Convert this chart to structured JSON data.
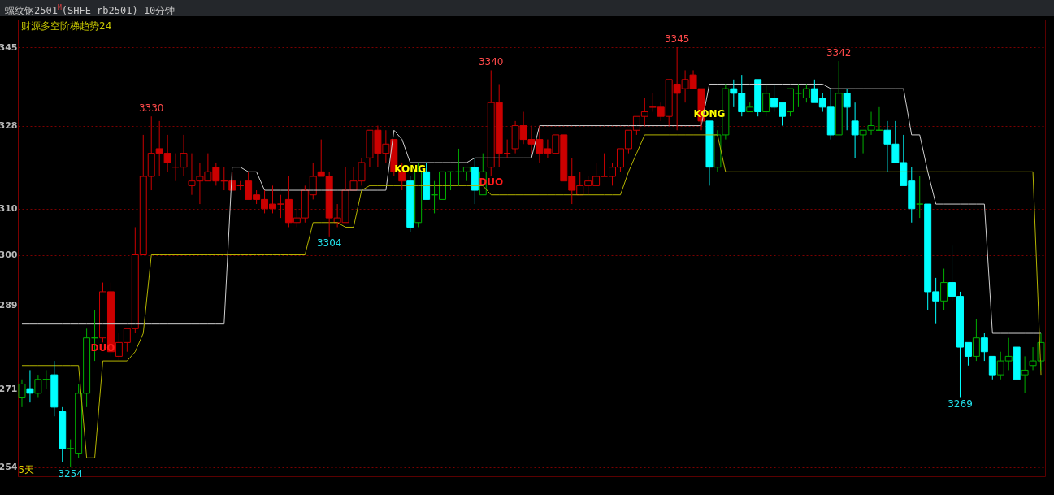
{
  "chart_data": {
    "type": "candlestick",
    "title": "螺纹钢2501$^{M}$(SHFE rb2501)  10分钟",
    "subtitle": "财源多空阶梯趋势24",
    "xlabel": "5天",
    "categories": [
      null,
      null,
      null,
      null,
      null,
      null,
      null,
      null,
      null,
      null,
      null,
      null,
      null,
      null,
      null,
      null,
      null,
      null,
      null,
      null,
      null,
      null,
      null,
      null,
      null,
      null,
      null,
      null,
      null,
      null,
      null,
      null,
      null,
      null,
      null,
      null,
      null,
      null,
      null,
      null,
      null,
      null,
      null,
      null,
      null,
      null,
      null,
      null,
      null,
      null,
      null,
      null,
      null,
      null,
      null,
      null,
      null,
      null,
      null,
      null,
      null,
      null,
      null,
      null,
      null,
      null,
      null,
      null,
      null,
      null,
      null,
      null,
      null,
      null,
      null,
      null,
      null,
      null,
      null,
      null,
      null,
      null,
      null,
      null,
      null,
      null,
      null,
      null,
      null,
      null,
      null,
      null,
      null,
      null,
      null,
      null,
      null,
      null,
      null,
      null,
      null,
      null,
      null,
      null,
      null,
      null,
      null,
      null,
      null,
      null,
      null,
      null,
      null,
      null,
      null,
      null,
      null,
      null,
      null,
      null,
      null,
      null,
      null,
      null,
      null,
      null,
      null
    ],
    "ohlc": [
      [
        269,
        273,
        267,
        272
      ],
      [
        271,
        275,
        268,
        270
      ],
      [
        270,
        274,
        269,
        273
      ],
      [
        273,
        275,
        271,
        273
      ],
      [
        274,
        277,
        265,
        267
      ],
      [
        266,
        267,
        255,
        258
      ],
      [
        258,
        260,
        254,
        258
      ],
      [
        257,
        272,
        256,
        270
      ],
      [
        270,
        284,
        267,
        282
      ],
      [
        282,
        288,
        277,
        282
      ],
      [
        282,
        294,
        281,
        292
      ],
      [
        292,
        294,
        278,
        279
      ],
      [
        278,
        283,
        277,
        281
      ],
      [
        281,
        284,
        279,
        284
      ],
      [
        284,
        306,
        283,
        300
      ],
      [
        300,
        326,
        300,
        317
      ],
      [
        317,
        330,
        314,
        322
      ],
      [
        323,
        329,
        317,
        322
      ],
      [
        322,
        326,
        318,
        320
      ],
      [
        319,
        322,
        316,
        319
      ],
      [
        319,
        326,
        317,
        322
      ],
      [
        315,
        322,
        313,
        316
      ],
      [
        316,
        320,
        311,
        317
      ],
      [
        316,
        322,
        316,
        318
      ],
      [
        319,
        320,
        315,
        316
      ],
      [
        316,
        319,
        314,
        316
      ],
      [
        316,
        318,
        314,
        314
      ],
      [
        315,
        316,
        314,
        315
      ],
      [
        316,
        318,
        312,
        312
      ],
      [
        313,
        314,
        311,
        312
      ],
      [
        312,
        314,
        309,
        310
      ],
      [
        311,
        315,
        309,
        310
      ],
      [
        311,
        313,
        308,
        311
      ],
      [
        312,
        317,
        306,
        307
      ],
      [
        307,
        310,
        306,
        308
      ],
      [
        308,
        315,
        307,
        314
      ],
      [
        313,
        320,
        312,
        317
      ],
      [
        318,
        325,
        317,
        317
      ],
      [
        317,
        318,
        304,
        308
      ],
      [
        307,
        311,
        306,
        308
      ],
      [
        307,
        319,
        307,
        314
      ],
      [
        314,
        319,
        314,
        316
      ],
      [
        316,
        321,
        315,
        320
      ],
      [
        321,
        327,
        319,
        327
      ],
      [
        327,
        328,
        319,
        322
      ],
      [
        322,
        327,
        320,
        324
      ],
      [
        325,
        325,
        317,
        318
      ],
      [
        318,
        320,
        314,
        316
      ],
      [
        316,
        317,
        305,
        306
      ],
      [
        307,
        320,
        306,
        318
      ],
      [
        318,
        320,
        312,
        312
      ],
      [
        313,
        316,
        309,
        313
      ],
      [
        312,
        318,
        312,
        318
      ],
      [
        318,
        318,
        314,
        318
      ],
      [
        318,
        323,
        315,
        318
      ],
      [
        318,
        319,
        316,
        319
      ],
      [
        319,
        321,
        311,
        314
      ],
      [
        313,
        322,
        313,
        318
      ],
      [
        319,
        340,
        317,
        333
      ],
      [
        333,
        337,
        319,
        322
      ],
      [
        322,
        325,
        321,
        322
      ],
      [
        323,
        329,
        322,
        328
      ],
      [
        328,
        331,
        324,
        325
      ],
      [
        325,
        328,
        322,
        324
      ],
      [
        325,
        328,
        320,
        322
      ],
      [
        323,
        325,
        321,
        322
      ],
      [
        322,
        326,
        322,
        326
      ],
      [
        326,
        326,
        316,
        316
      ],
      [
        317,
        321,
        311,
        314
      ],
      [
        313,
        318,
        313,
        315
      ],
      [
        315,
        317,
        313,
        316
      ],
      [
        315,
        320,
        315,
        317
      ],
      [
        317,
        322,
        317,
        317
      ],
      [
        317,
        320,
        315,
        319
      ],
      [
        319,
        323,
        318,
        323
      ],
      [
        323,
        327,
        322,
        327
      ],
      [
        327,
        330,
        326,
        330
      ],
      [
        330,
        334,
        328,
        331
      ],
      [
        332,
        335,
        331,
        332
      ],
      [
        332,
        333,
        329,
        330
      ],
      [
        330,
        338,
        328,
        338
      ],
      [
        337,
        345,
        327,
        335
      ],
      [
        336,
        340,
        333,
        338
      ],
      [
        339,
        340,
        336,
        336
      ],
      [
        336,
        336,
        327,
        329
      ],
      [
        329,
        329,
        315,
        319
      ],
      [
        319,
        327,
        318,
        326
      ],
      [
        326,
        337,
        325,
        336
      ],
      [
        336,
        338,
        332,
        335
      ],
      [
        335,
        339,
        330,
        331
      ],
      [
        331,
        333,
        331,
        332
      ],
      [
        338,
        338,
        330,
        331
      ],
      [
        331,
        337,
        330,
        335
      ],
      [
        334,
        337,
        331,
        332
      ],
      [
        333,
        333,
        328,
        330
      ],
      [
        331,
        336,
        330,
        336
      ],
      [
        335,
        337,
        332,
        335
      ],
      [
        334,
        337,
        333,
        336
      ],
      [
        336,
        338,
        333,
        333
      ],
      [
        334,
        335,
        331,
        332
      ],
      [
        332,
        336,
        325,
        326
      ],
      [
        326,
        342,
        326,
        335
      ],
      [
        335,
        336,
        327,
        332
      ],
      [
        329,
        333,
        321,
        326
      ],
      [
        326,
        327,
        322,
        327
      ],
      [
        327,
        331,
        326,
        328
      ],
      [
        327,
        332,
        327,
        327
      ],
      [
        327,
        329,
        318,
        324
      ],
      [
        324,
        329,
        320,
        320
      ],
      [
        320,
        326,
        315,
        315
      ],
      [
        316,
        319,
        307,
        310
      ],
      [
        311,
        317,
        308,
        311
      ],
      [
        311,
        311,
        288,
        292
      ],
      [
        292,
        295,
        285,
        290
      ],
      [
        290,
        297,
        288,
        294
      ],
      [
        294,
        302,
        290,
        291
      ],
      [
        291,
        292,
        269,
        280
      ],
      [
        281,
        281,
        276,
        278
      ],
      [
        278,
        286,
        277,
        282
      ],
      [
        282,
        283,
        277,
        279
      ],
      [
        278,
        278,
        273,
        274
      ],
      [
        274,
        279,
        273,
        277
      ],
      [
        277,
        282,
        275,
        278
      ],
      [
        280,
        280,
        273,
        273
      ],
      [
        274,
        278,
        270,
        275
      ],
      [
        276,
        280,
        275,
        277
      ],
      [
        277,
        283,
        275,
        281
      ]
    ],
    "colors": [
      "#00b000",
      "#00ffff",
      "#00b000",
      "#00b000",
      "#00ffff",
      "#00ffff",
      "#00b000",
      "#00b000",
      "#00b000",
      "#00b000",
      "#cc0000",
      "#cc0000",
      "#cc0000",
      "#cc0000",
      "#cc0000",
      "#cc0000",
      "#cc0000",
      "#cc0000",
      "#cc0000",
      "#cc0000",
      "#cc0000",
      "#cc0000",
      "#cc0000",
      "#cc0000",
      "#cc0000",
      "#cc0000",
      "#cc0000",
      "#cc0000",
      "#cc0000",
      "#cc0000",
      "#cc0000",
      "#cc0000",
      "#cc0000",
      "#cc0000",
      "#cc0000",
      "#cc0000",
      "#cc0000",
      "#cc0000",
      "#cc0000",
      "#cc0000",
      "#cc0000",
      "#cc0000",
      "#cc0000",
      "#cc0000",
      "#cc0000",
      "#cc0000",
      "#cc0000",
      "#cc0000",
      "#00ffff",
      "#00b000",
      "#00ffff",
      "#00b000",
      "#00b000",
      "#00b000",
      "#00b000",
      "#00b000",
      "#00ffff",
      "#00b000",
      "#cc0000",
      "#cc0000",
      "#cc0000",
      "#cc0000",
      "#cc0000",
      "#cc0000",
      "#cc0000",
      "#cc0000",
      "#cc0000",
      "#cc0000",
      "#cc0000",
      "#cc0000",
      "#cc0000",
      "#cc0000",
      "#cc0000",
      "#cc0000",
      "#cc0000",
      "#cc0000",
      "#cc0000",
      "#cc0000",
      "#cc0000",
      "#cc0000",
      "#cc0000",
      "#cc0000",
      "#cc0000",
      "#cc0000",
      "#cc0000",
      "#00ffff",
      "#00b000",
      "#00b000",
      "#00ffff",
      "#00ffff",
      "#00b000",
      "#00ffff",
      "#00b000",
      "#00ffff",
      "#00ffff",
      "#00b000",
      "#00b000",
      "#00b000",
      "#00ffff",
      "#00ffff",
      "#00ffff",
      "#00b000",
      "#00ffff",
      "#00ffff",
      "#00b000",
      "#00b000",
      "#00b000",
      "#00ffff",
      "#00ffff",
      "#00ffff",
      "#00ffff",
      "#00b000",
      "#00ffff",
      "#00ffff",
      "#00b000",
      "#00ffff",
      "#00ffff",
      "#00ffff",
      "#00b000",
      "#00ffff",
      "#00ffff",
      "#00b000",
      "#00b000",
      "#00ffff",
      "#00b000",
      "#00b000",
      "#00b000"
    ],
    "series": [
      {
        "type": "line",
        "color": "#d0d0d0",
        "values": [
          285,
          285,
          285,
          285,
          285,
          285,
          285,
          285,
          285,
          285,
          285,
          285,
          285,
          285,
          285,
          285,
          285,
          285,
          285,
          285,
          285,
          285,
          285,
          285,
          285,
          285,
          319,
          319,
          318,
          318,
          314,
          314,
          314,
          314,
          314,
          314,
          314,
          314,
          314,
          314,
          314,
          314,
          314,
          314,
          314,
          314,
          327,
          325,
          320,
          320,
          320,
          320,
          320,
          320,
          320,
          320,
          321,
          321,
          321,
          321,
          321,
          321,
          321,
          321,
          328,
          328,
          328,
          328,
          328,
          328,
          328,
          328,
          328,
          328,
          328,
          328,
          328,
          328,
          328,
          328,
          328,
          328,
          328,
          328,
          328,
          337,
          337,
          337,
          337,
          337,
          337,
          337,
          337,
          337,
          337,
          337,
          337,
          337,
          337,
          337,
          336,
          336,
          336,
          336,
          336,
          336,
          336,
          336,
          336,
          336,
          326,
          326,
          318,
          311,
          311,
          311,
          311,
          311,
          311,
          311,
          283,
          283,
          283,
          283,
          283,
          283,
          283
        ]
      },
      {
        "type": "line",
        "color": "#b4b400",
        "values": [
          276,
          276,
          276,
          276,
          276,
          276,
          276,
          276,
          256,
          256,
          277,
          277,
          277,
          277,
          279,
          283,
          300,
          300,
          300,
          300,
          300,
          300,
          300,
          300,
          300,
          300,
          300,
          300,
          300,
          300,
          300,
          300,
          300,
          300,
          300,
          300,
          307,
          307,
          307,
          307,
          306,
          306,
          314,
          315,
          315,
          315,
          315,
          315,
          315,
          315,
          315,
          315,
          315,
          315,
          315,
          315,
          315,
          315,
          313,
          313,
          313,
          313,
          313,
          313,
          313,
          313,
          313,
          313,
          313,
          313,
          313,
          313,
          313,
          313,
          313,
          318,
          322,
          326,
          326,
          326,
          326,
          326,
          326,
          326,
          326,
          326,
          326,
          318,
          318,
          318,
          318,
          318,
          318,
          318,
          318,
          318,
          318,
          318,
          318,
          318,
          318,
          318,
          318,
          318,
          318,
          318,
          318,
          318,
          318,
          318,
          318,
          318,
          318,
          318,
          318,
          318,
          318,
          318,
          318,
          318,
          318,
          318,
          318,
          318,
          318,
          318,
          274
        ]
      }
    ],
    "ylim": [
      252,
      351
    ],
    "yticks": [
      254,
      271,
      289,
      300,
      310,
      328,
      345
    ],
    "grid": "y",
    "tick_labels": "y",
    "annotations": [
      {
        "text": "3330",
        "y": 330
      },
      {
        "text": "3340",
        "y": 340
      },
      {
        "text": "3345",
        "y": 345
      },
      {
        "text": "3342",
        "y": 342
      },
      {
        "text": "3304",
        "y": 304
      },
      {
        "text": "3254",
        "y": 254
      },
      {
        "text": "3269",
        "y": 269
      },
      "DUO",
      "KONG",
      "DUO",
      "KONG"
    ]
  }
}
